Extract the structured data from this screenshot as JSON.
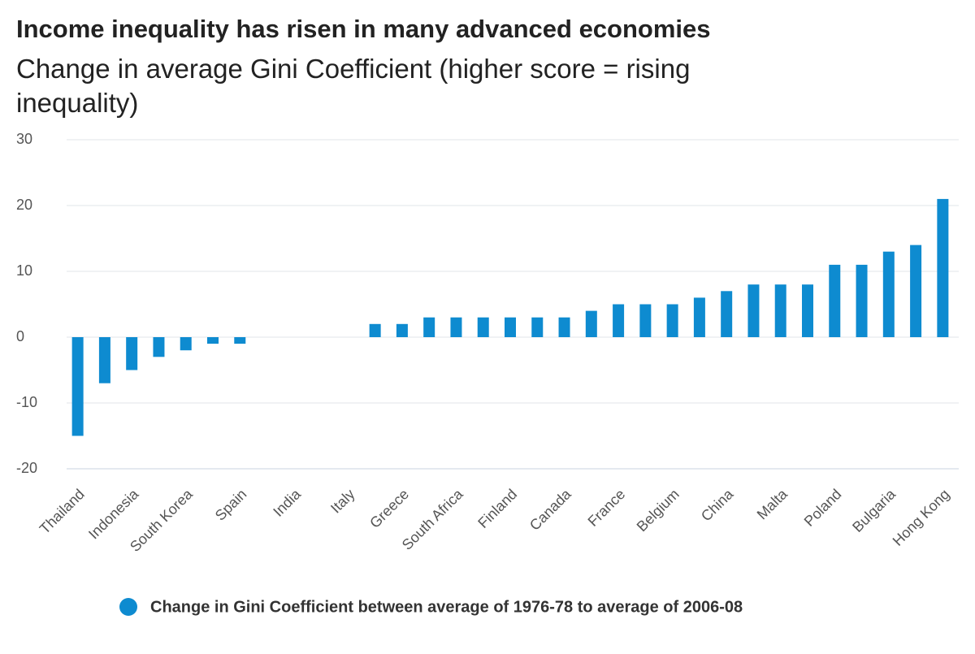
{
  "chart_data": {
    "type": "bar",
    "title": "Income inequality has risen in many advanced economies",
    "subtitle": "Change in average Gini Coefficient (higher score = rising inequality)",
    "categories": [
      "Thailand",
      null,
      "Indonesia",
      null,
      "South Korea",
      null,
      "Spain",
      null,
      "India",
      null,
      "Italy",
      null,
      "Greece",
      null,
      "South Africa",
      null,
      "Finland",
      null,
      "Canada",
      null,
      "France",
      null,
      "Belgium",
      null,
      "China",
      null,
      "Malta",
      null,
      "Poland",
      null,
      "Bulgaria",
      null,
      "Hong Kong"
    ],
    "series": [
      {
        "name": "Change in Gini Coefficient between average of 1976-78 to average of 2006-08",
        "color": "#0e8bd0",
        "values": [
          -15,
          -7,
          -5,
          -3,
          -2,
          -1,
          -1,
          0,
          0,
          0,
          0,
          2,
          2,
          3,
          3,
          3,
          3,
          3,
          3,
          4,
          5,
          5,
          5,
          6,
          7,
          8,
          8,
          8,
          11,
          11,
          13,
          14,
          21
        ]
      }
    ],
    "ylim": [
      -20,
      30
    ],
    "yticks": [
      -20,
      -10,
      0,
      10,
      20,
      30
    ],
    "grid": true,
    "legend": "bottom"
  }
}
